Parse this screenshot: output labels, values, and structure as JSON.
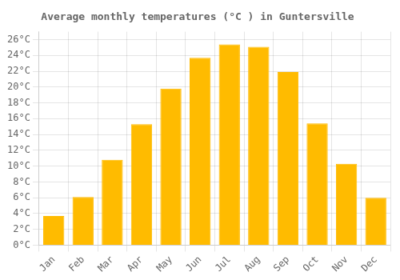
{
  "chart_data": {
    "type": "bar",
    "title": "Average monthly temperatures (°C ) in Guntersville",
    "categories": [
      "Jan",
      "Feb",
      "Mar",
      "Apr",
      "May",
      "Jun",
      "Jul",
      "Aug",
      "Sep",
      "Oct",
      "Nov",
      "Dec"
    ],
    "values": [
      3.7,
      6.1,
      10.8,
      15.3,
      19.8,
      23.7,
      25.4,
      25.1,
      21.9,
      15.4,
      10.3,
      6.0
    ],
    "color": "#FFBB00",
    "ylim": [
      0,
      27
    ],
    "yticks": [
      {
        "value": 0,
        "label": "0°C"
      },
      {
        "value": 2,
        "label": "2°C"
      },
      {
        "value": 4,
        "label": "4°C"
      },
      {
        "value": 6,
        "label": "6°C"
      },
      {
        "value": 8,
        "label": "8°C"
      },
      {
        "value": 10,
        "label": "10°C"
      },
      {
        "value": 12,
        "label": "12°C"
      },
      {
        "value": 14,
        "label": "14°C"
      },
      {
        "value": 16,
        "label": "16°C"
      },
      {
        "value": 18,
        "label": "18°C"
      },
      {
        "value": 20,
        "label": "20°C"
      },
      {
        "value": 22,
        "label": "22°C"
      },
      {
        "value": 24,
        "label": "24°C"
      },
      {
        "value": 26,
        "label": "26°C"
      }
    ],
    "grid": true
  }
}
